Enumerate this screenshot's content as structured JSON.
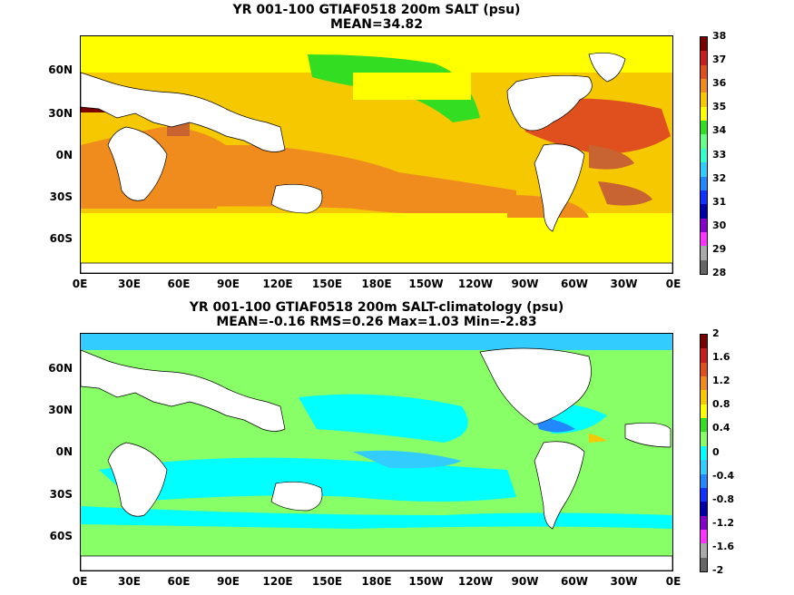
{
  "panel1": {
    "title_line1": "YR 001-100 GTIAF0518 200m SALT (psu)",
    "title_line2": "MEAN=34.82",
    "colorbar": {
      "labels": [
        "38",
        "37",
        "36",
        "35",
        "34",
        "33",
        "32",
        "31",
        "30",
        "29",
        "28"
      ],
      "colors": [
        "#7a0000",
        "#c81e1e",
        "#e0501e",
        "#f08c1e",
        "#f5c800",
        "#ffff00",
        "#33dd22",
        "#66ff88",
        "#33ffcc",
        "#33ccff",
        "#2288ff",
        "#1133ff",
        "#0000aa",
        "#8800cc",
        "#ff33ff",
        "#aaaaaa",
        "#666666"
      ]
    }
  },
  "panel2": {
    "title_line1": "YR 001-100 GTIAF0518 200m SALT-climatology (psu)",
    "title_line2": "MEAN=-0.16   RMS=0.26   Max=1.03   Min=-2.83",
    "colorbar": {
      "labels": [
        "2",
        "1.6",
        "1.2",
        "0.8",
        "0.4",
        "0",
        "-0.4",
        "-0.8",
        "-1.2",
        "-1.6",
        "-2"
      ],
      "colors": [
        "#7a0000",
        "#c81e1e",
        "#e0501e",
        "#f08c1e",
        "#f5c800",
        "#ffff00",
        "#33dd22",
        "#88ff66",
        "#00ffff",
        "#33ccff",
        "#2288ff",
        "#1133ff",
        "#0000aa",
        "#8800cc",
        "#ff33ff",
        "#aaaaaa",
        "#666666"
      ]
    }
  },
  "lat_labels": [
    "60N",
    "30N",
    "0N",
    "30S",
    "60S"
  ],
  "lon_labels": [
    "0E",
    "30E",
    "60E",
    "90E",
    "120E",
    "150E",
    "180E",
    "150W",
    "120W",
    "90W",
    "60W",
    "30W",
    "0E"
  ]
}
